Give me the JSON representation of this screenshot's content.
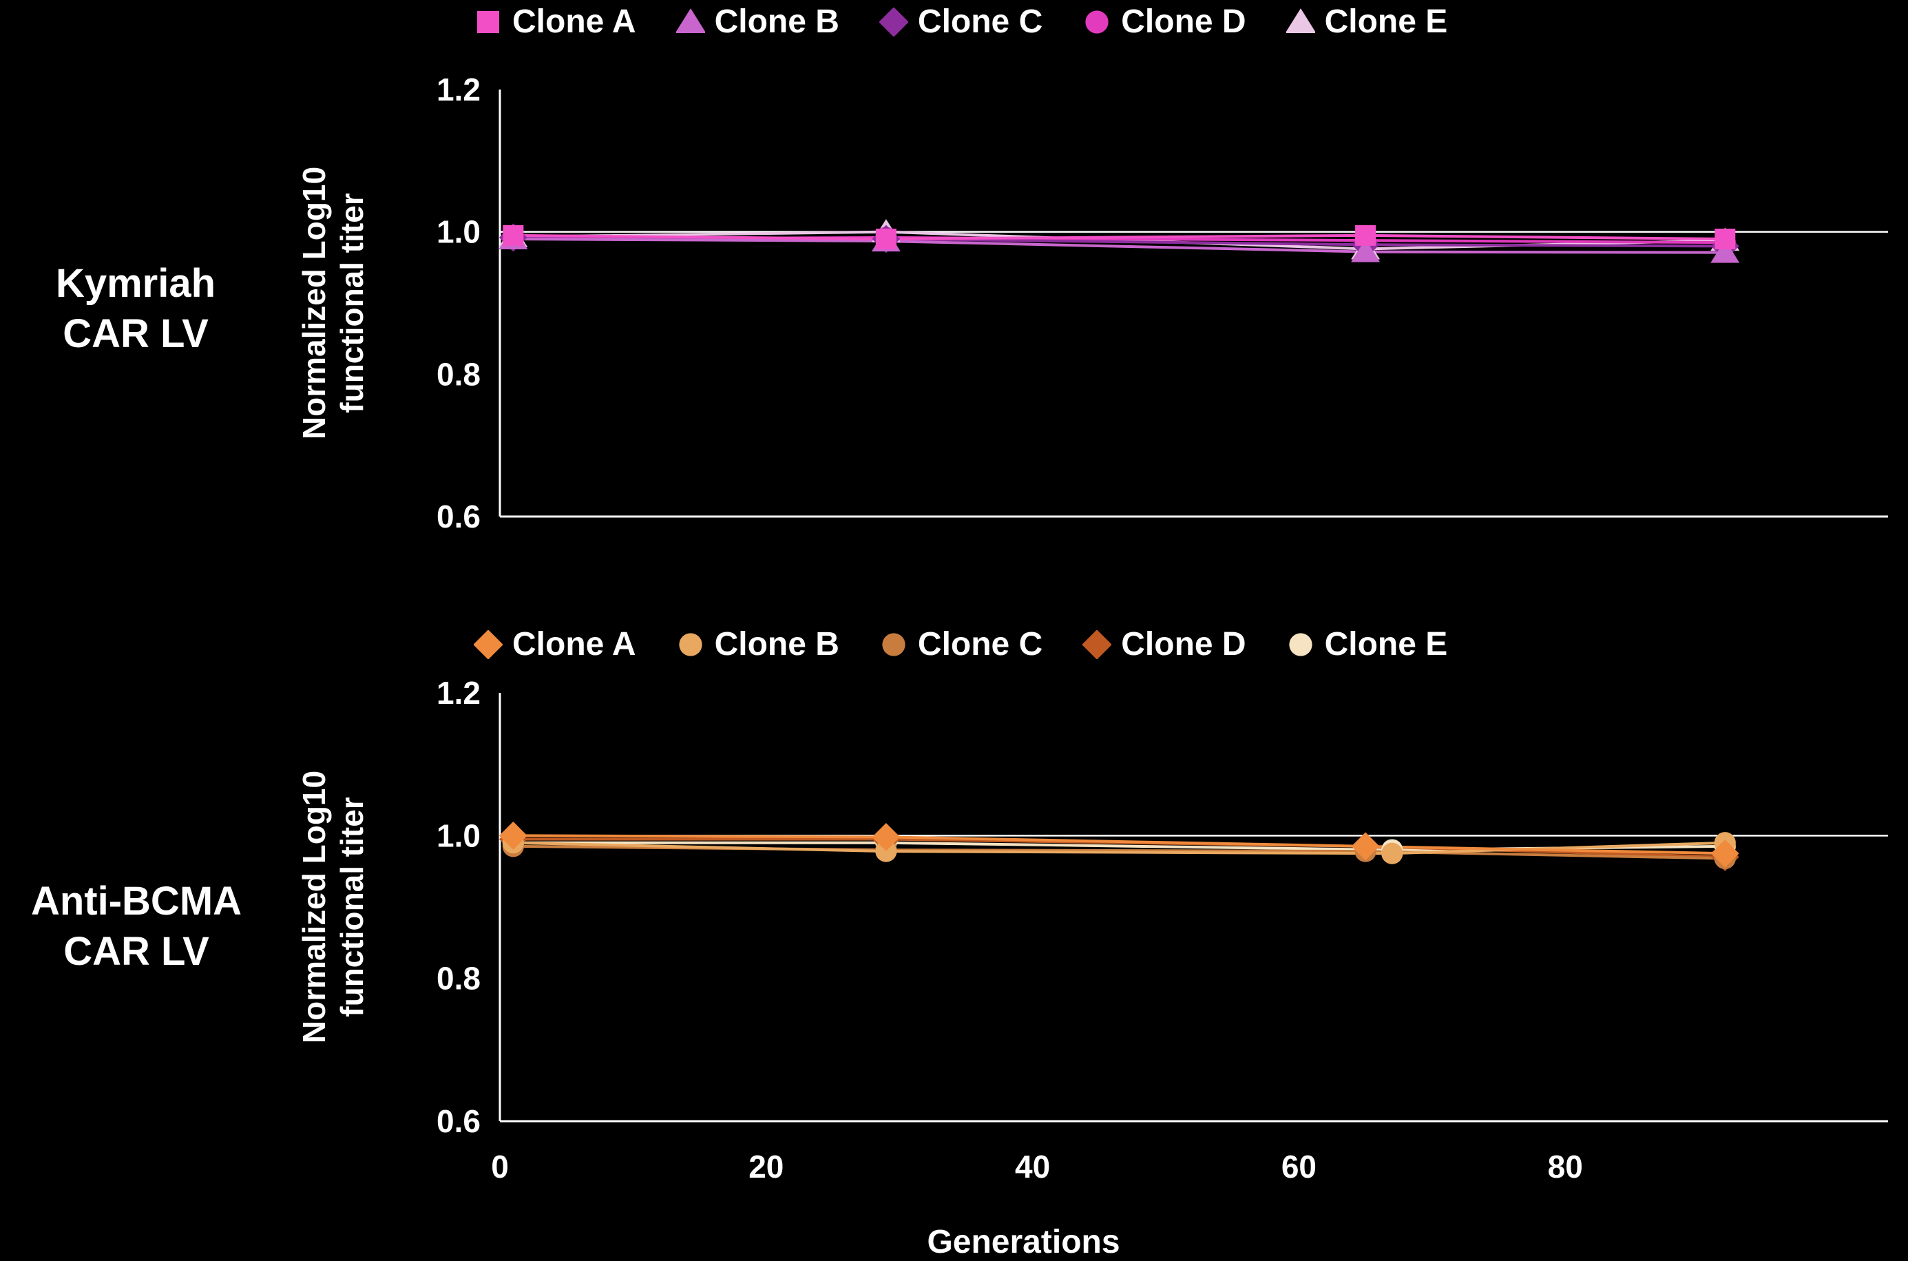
{
  "figure": {
    "background": "#000000",
    "axis_color": "#ffffff",
    "row_labels": [
      "Kymriah\nCAR LV",
      "Anti-BCMA\nCAR LV"
    ]
  },
  "chart_data": [
    {
      "type": "line",
      "title": "Kymriah CAR LV",
      "ylabel": "Normalized Log10\nfunctional titer",
      "xlabel": "",
      "xlim": [
        0,
        104
      ],
      "ylim": [
        0.6,
        1.2
      ],
      "yticks": [
        0.6,
        0.8,
        1.0,
        1.2
      ],
      "xticks": [
        0,
        20,
        40,
        60,
        80
      ],
      "show_xtick_labels": false,
      "gridline_y": 1.0,
      "legend_position": "top",
      "series": [
        {
          "name": "Clone A",
          "marker": "square",
          "color": "#F24FC6",
          "x": [
            1,
            29,
            65,
            92
          ],
          "values": [
            0.995,
            0.99,
            0.995,
            0.99
          ]
        },
        {
          "name": "Clone B",
          "marker": "triangle",
          "color": "#C966CE",
          "x": [
            1,
            29,
            65,
            92
          ],
          "values": [
            0.99,
            0.987,
            0.972,
            0.971
          ]
        },
        {
          "name": "Clone C",
          "marker": "diamond",
          "color": "#8E2D9E",
          "x": [
            1,
            29,
            65,
            92
          ],
          "values": [
            0.992,
            0.99,
            0.982,
            0.98
          ]
        },
        {
          "name": "Clone D",
          "marker": "circle",
          "color": "#E23BBE",
          "x": [
            1,
            29,
            65,
            92
          ],
          "values": [
            0.99,
            0.992,
            0.988,
            0.985
          ]
        },
        {
          "name": "Clone E",
          "marker": "triangle",
          "color": "#EBC7E6",
          "x": [
            1,
            29,
            65,
            92
          ],
          "values": [
            0.993,
            1.0,
            0.976,
            0.988
          ]
        }
      ]
    },
    {
      "type": "line",
      "title": "Anti-BCMA CAR LV",
      "ylabel": "Normalized Log10\nfunctional titer",
      "xlabel": "Generations",
      "xlim": [
        0,
        104
      ],
      "ylim": [
        0.6,
        1.2
      ],
      "yticks": [
        0.6,
        0.8,
        1.0,
        1.2
      ],
      "xticks": [
        0,
        20,
        40,
        60,
        80
      ],
      "show_xtick_labels": true,
      "gridline_y": 1.0,
      "legend_position": "top",
      "series": [
        {
          "name": "Clone A",
          "marker": "diamond",
          "color": "#F08A3C",
          "x": [
            1,
            29,
            65,
            92
          ],
          "values": [
            1.0,
            0.998,
            0.985,
            0.975
          ]
        },
        {
          "name": "Clone B",
          "marker": "circle",
          "color": "#E9A860",
          "x": [
            1,
            29,
            67,
            92
          ],
          "values": [
            0.99,
            0.978,
            0.975,
            0.99
          ]
        },
        {
          "name": "Clone C",
          "marker": "circle",
          "color": "#C87D3F",
          "x": [
            1,
            29,
            65,
            92
          ],
          "values": [
            0.985,
            0.98,
            0.978,
            0.968
          ]
        },
        {
          "name": "Clone D",
          "marker": "diamond",
          "color": "#C05A22",
          "x": [
            1,
            29,
            65,
            92
          ],
          "values": [
            0.995,
            0.995,
            0.985,
            0.97
          ]
        },
        {
          "name": "Clone E",
          "marker": "circle",
          "color": "#F6E3C2",
          "x": [
            1,
            29,
            67,
            92
          ],
          "values": [
            0.99,
            0.99,
            0.98,
            0.985
          ]
        }
      ]
    }
  ]
}
